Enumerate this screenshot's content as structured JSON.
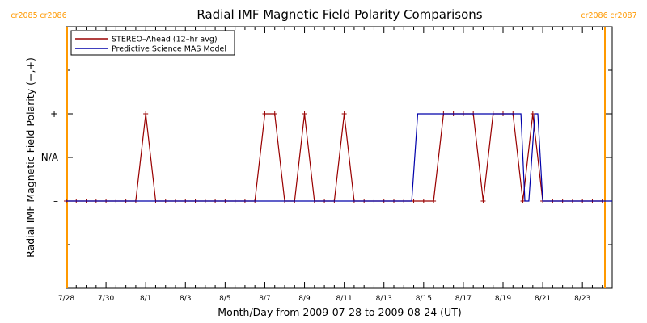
{
  "chart_data": {
    "type": "line",
    "title": "Radial IMF Magnetic Field Polarity Comparisons",
    "xlabel": "Month/Day from 2009-07-28 to 2009-08-24 (UT)",
    "ylabel": "Radial IMF Magnetic Field Polarity (−,+)",
    "x_unit": "days from 2009-07-28",
    "xlim": [
      0,
      27.5
    ],
    "ylim": [
      -1,
      2
    ],
    "x_ticks": [
      {
        "x": 0,
        "label": "7/28"
      },
      {
        "x": 2,
        "label": "7/30"
      },
      {
        "x": 4,
        "label": "8/1"
      },
      {
        "x": 6,
        "label": "8/3"
      },
      {
        "x": 8,
        "label": "8/5"
      },
      {
        "x": 10,
        "label": "8/7"
      },
      {
        "x": 12,
        "label": "8/9"
      },
      {
        "x": 14,
        "label": "8/11"
      },
      {
        "x": 16,
        "label": "8/13"
      },
      {
        "x": 18,
        "label": "8/15"
      },
      {
        "x": 20,
        "label": "8/17"
      },
      {
        "x": 22,
        "label": "8/19"
      },
      {
        "x": 24,
        "label": "8/21"
      },
      {
        "x": 26,
        "label": "8/23"
      }
    ],
    "y_ticks": [
      {
        "y": 1,
        "label": "+"
      },
      {
        "y": 0.5,
        "label": "N/A"
      },
      {
        "y": 0,
        "label": "–"
      }
    ],
    "rotations": [
      {
        "x": 0,
        "label_left": "cr2085",
        "label_right": "cr2086"
      },
      {
        "x": 27.5,
        "label_left": "cr2086",
        "label_right": "cr2087"
      }
    ],
    "legend_position": "top-left",
    "series": [
      {
        "name": "STEREO–Ahead (12–hr avg)",
        "color": "#990000",
        "marker": "+",
        "points": [
          [
            0,
            0
          ],
          [
            0.5,
            0
          ],
          [
            1,
            0
          ],
          [
            1.5,
            0
          ],
          [
            2,
            0
          ],
          [
            2.5,
            0
          ],
          [
            3,
            0
          ],
          [
            3.5,
            0
          ],
          [
            4,
            1
          ],
          [
            4.5,
            0
          ],
          [
            5,
            0
          ],
          [
            5.5,
            0
          ],
          [
            6,
            0
          ],
          [
            6.5,
            0
          ],
          [
            7,
            0
          ],
          [
            7.5,
            0
          ],
          [
            8,
            0
          ],
          [
            8.5,
            0
          ],
          [
            9,
            0
          ],
          [
            9.5,
            0
          ],
          [
            10,
            1
          ],
          [
            10.5,
            1
          ],
          [
            11,
            0
          ],
          [
            11.5,
            0
          ],
          [
            12,
            1
          ],
          [
            12.5,
            0
          ],
          [
            13,
            0
          ],
          [
            13.5,
            0
          ],
          [
            14,
            1
          ],
          [
            14.5,
            0
          ],
          [
            15,
            0
          ],
          [
            15.5,
            0
          ],
          [
            16,
            0
          ],
          [
            16.5,
            0
          ],
          [
            17,
            0
          ],
          [
            17.5,
            0
          ],
          [
            18,
            0
          ],
          [
            18.5,
            0
          ],
          [
            19,
            1
          ],
          [
            19.5,
            1
          ],
          [
            20,
            1
          ],
          [
            20.5,
            1
          ],
          [
            21,
            0
          ],
          [
            21.5,
            1
          ],
          [
            22,
            1
          ],
          [
            22.5,
            1
          ],
          [
            23,
            0
          ],
          [
            23.5,
            1
          ],
          [
            24,
            0
          ],
          [
            24.5,
            0
          ],
          [
            25,
            0
          ],
          [
            25.5,
            0
          ],
          [
            26,
            0
          ],
          [
            26.5,
            0
          ],
          [
            27,
            0
          ]
        ]
      },
      {
        "name": "Predictive Science MAS Model",
        "color": "#0000aa",
        "marker": "",
        "points": [
          [
            0,
            0
          ],
          [
            17.4,
            0
          ],
          [
            17.7,
            1
          ],
          [
            22.9,
            1
          ],
          [
            23.1,
            0
          ],
          [
            23.3,
            0
          ],
          [
            23.6,
            1
          ],
          [
            23.75,
            1
          ],
          [
            24,
            0
          ],
          [
            27.5,
            0
          ]
        ]
      }
    ]
  }
}
